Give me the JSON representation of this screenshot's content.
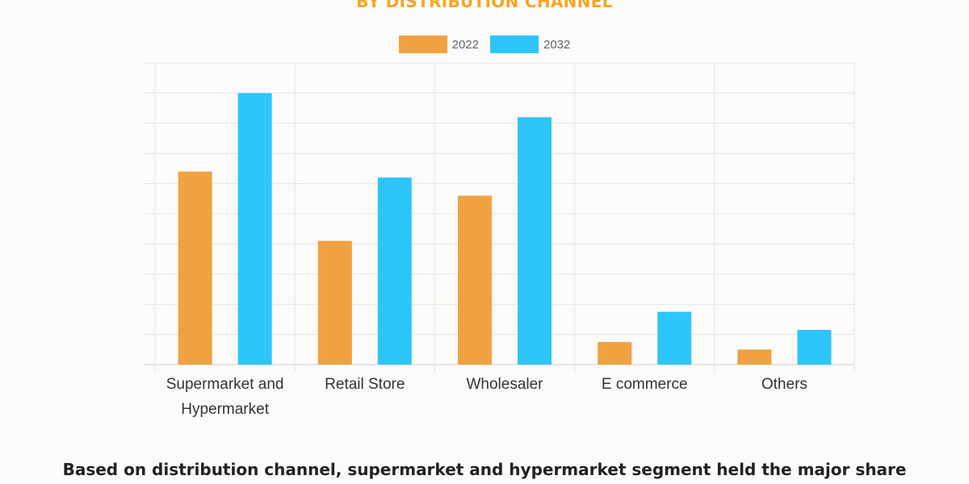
{
  "title": "BY DISTRIBUTION CHANNEL",
  "caption": "Based on distribution channel, supermarket and hypermarket segment held the major share",
  "colors": {
    "series_2022": "#f0a243",
    "series_2032": "#2ec5fb",
    "grid": "#e4e4e4",
    "axis": "#cfcfcf",
    "title": "#f5a623"
  },
  "chart_data": {
    "type": "bar",
    "title": "BY DISTRIBUTION CHANNEL",
    "categories": [
      [
        "Supermarket and",
        "Hypermarket"
      ],
      [
        "Retail Store"
      ],
      [
        "Wholesaler"
      ],
      [
        "E commerce"
      ],
      [
        "Others"
      ]
    ],
    "series": [
      {
        "name": "2022",
        "values": [
          64,
          41,
          56,
          7.5,
          5
        ]
      },
      {
        "name": "2032",
        "values": [
          90,
          62,
          82,
          17.5,
          11.5
        ]
      }
    ],
    "ylim": [
      0,
      100
    ],
    "y_ticks_shown": false,
    "grid": true,
    "legend": "top-center",
    "xlabel": "",
    "ylabel": ""
  }
}
